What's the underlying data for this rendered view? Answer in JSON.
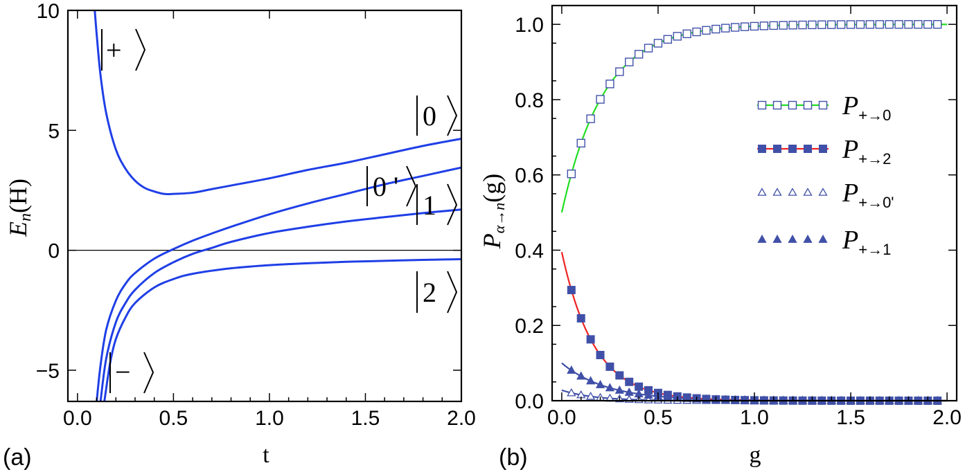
{
  "panel_a": {
    "label": "(a)",
    "chart_data": {
      "type": "line",
      "xlabel": "t",
      "ylabel_main": "E",
      "ylabel_sub": "n",
      "ylabel_rest": "(H)",
      "xlim": [
        -0.05,
        2.0
      ],
      "ylim": [
        -6.3,
        10.0
      ],
      "xticks": [
        0.0,
        0.5,
        1.0,
        1.5,
        2.0
      ],
      "xtick_labels": [
        "0.0",
        "0.5",
        "1.0",
        "1.5",
        "2.0"
      ],
      "yticks": [
        -5,
        0,
        5,
        10
      ],
      "ytick_labels": [
        "−5",
        "0",
        "5",
        "10"
      ],
      "line_color": "#1f3fe6",
      "zero_line": true,
      "series": [
        {
          "name": "|+⟩",
          "x": [
            0.09,
            0.1,
            0.12,
            0.15,
            0.2,
            0.25,
            0.3,
            0.35,
            0.4,
            0.45,
            0.5,
            0.6,
            0.7,
            0.8,
            1.0,
            1.2,
            1.4,
            1.6,
            1.8,
            2.0
          ],
          "y": [
            10.0,
            9.0,
            7.3,
            5.7,
            4.2,
            3.4,
            2.9,
            2.6,
            2.45,
            2.35,
            2.35,
            2.4,
            2.55,
            2.7,
            3.0,
            3.35,
            3.65,
            4.0,
            4.35,
            4.65
          ]
        },
        {
          "name": "|0'⟩",
          "x": [
            0.1,
            0.12,
            0.15,
            0.2,
            0.25,
            0.3,
            0.4,
            0.5,
            0.6,
            0.7,
            0.8,
            1.0,
            1.2,
            1.4,
            1.6,
            1.8,
            2.0
          ],
          "y": [
            -6.3,
            -4.8,
            -3.3,
            -2.1,
            -1.4,
            -0.95,
            -0.35,
            0.05,
            0.4,
            0.7,
            0.98,
            1.5,
            1.95,
            2.35,
            2.75,
            3.1,
            3.45
          ]
        },
        {
          "name": "|1⟩",
          "x": [
            0.12,
            0.15,
            0.2,
            0.25,
            0.3,
            0.4,
            0.5,
            0.6,
            0.7,
            0.8,
            1.0,
            1.2,
            1.4,
            1.6,
            1.8,
            2.0
          ],
          "y": [
            -6.3,
            -4.5,
            -3.0,
            -2.2,
            -1.65,
            -0.95,
            -0.5,
            -0.15,
            0.1,
            0.35,
            0.72,
            0.98,
            1.2,
            1.38,
            1.55,
            1.7
          ]
        },
        {
          "name": "|2⟩",
          "x": [
            0.14,
            0.17,
            0.2,
            0.25,
            0.3,
            0.4,
            0.5,
            0.6,
            0.8,
            1.0,
            1.2,
            1.4,
            1.6,
            1.8,
            2.0
          ],
          "y": [
            -6.3,
            -4.7,
            -3.7,
            -2.8,
            -2.2,
            -1.55,
            -1.2,
            -0.98,
            -0.75,
            -0.62,
            -0.54,
            -0.48,
            -0.44,
            -0.4,
            -0.37
          ]
        }
      ],
      "annotations": [
        "+",
        "−",
        "0",
        "0 '",
        "1",
        "2"
      ]
    }
  },
  "panel_b": {
    "label": "(b)",
    "chart_data": {
      "type": "line",
      "xlabel": "g",
      "ylabel_main": "P",
      "ylabel_sub": "α→n",
      "ylabel_rest": "(g)",
      "xlim": [
        -0.05,
        2.05
      ],
      "ylim": [
        0.0,
        1.05
      ],
      "xticks": [
        0.0,
        0.5,
        1.0,
        1.5,
        2.0
      ],
      "xtick_labels": [
        "0.0",
        "0.5",
        "1.0",
        "1.5",
        "2.0"
      ],
      "yticks": [
        0.0,
        0.2,
        0.4,
        0.6,
        0.8,
        1.0
      ],
      "ytick_labels": [
        "0.0",
        "0.2",
        "0.4",
        "0.6",
        "0.8",
        "1.0"
      ],
      "marker_color": "#4050a8",
      "series": [
        {
          "name": "P+→0",
          "legend_main": "P",
          "legend_sub": "+→0",
          "marker": "open-square",
          "line_color": "#22dd22",
          "k": 4.6,
          "start": 0.5,
          "end": 1.0
        },
        {
          "name": "P+→2",
          "legend_main": "P",
          "legend_sub": "+→2",
          "marker": "filled-square",
          "line_color": "#ee2222",
          "k": 5.9,
          "start": 0.395,
          "end": 0.0
        },
        {
          "name": "P+→0'",
          "legend_main": "P",
          "legend_sub": "+→0'",
          "marker": "open-triangle",
          "line_color": "#4050a8",
          "k": 6.0,
          "start": 0.028,
          "end": 0.0
        },
        {
          "name": "P+→1",
          "legend_main": "P",
          "legend_sub": "+→1",
          "marker": "filled-triangle",
          "line_color": "#4050a8",
          "k": 4.3,
          "start": 0.1,
          "end": 0.0
        }
      ],
      "marker_x_start": 0.05,
      "marker_x_step": 0.05,
      "marker_count": 39,
      "legend_position": "center-right"
    }
  }
}
